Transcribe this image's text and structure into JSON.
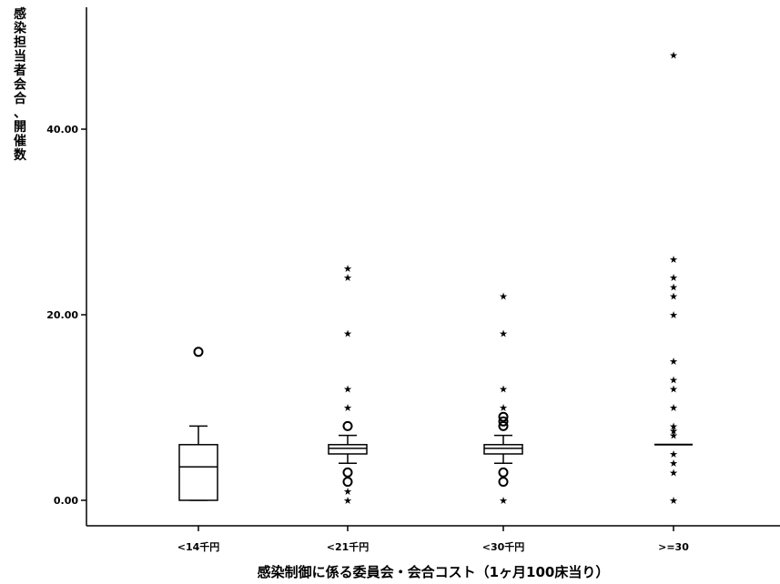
{
  "chart_data": {
    "type": "boxplot",
    "xlabel": "感染制御に係る委員会・会合コスト（1ヶ月100床当り）",
    "ylabel": "感染担当者会合・開催数",
    "ylim": [
      0,
      48
    ],
    "yticks": [
      0,
      20,
      40
    ],
    "ytick_labels": [
      "0.00",
      "20.00",
      "40.00"
    ],
    "categories": [
      "<14千円",
      "<21千円",
      "<30千円",
      ">=30"
    ],
    "groups": [
      {
        "category": "<14千円",
        "whisker_low": 0,
        "q1": 0,
        "median": 3.6,
        "q3": 6,
        "whisker_high": 8,
        "outliers": [
          16
        ],
        "extremes": []
      },
      {
        "category": "<21千円",
        "whisker_low": 4,
        "q1": 5,
        "median": 5.6,
        "q3": 6,
        "whisker_high": 7,
        "outliers": [
          8,
          3,
          2
        ],
        "extremes": [
          25,
          24,
          18,
          12,
          10,
          1,
          0
        ]
      },
      {
        "category": "<30千円",
        "whisker_low": 4,
        "q1": 5,
        "median": 5.6,
        "q3": 6,
        "whisker_high": 7,
        "outliers": [
          9,
          8.5,
          8,
          3,
          2
        ],
        "extremes": [
          22,
          18,
          12,
          10,
          0
        ]
      },
      {
        "category": ">=30",
        "whisker_low": 6,
        "q1": 6,
        "median": 6,
        "q3": 6,
        "whisker_high": 6,
        "outliers": [],
        "extremes": [
          48,
          26,
          24,
          23,
          22,
          20,
          15,
          13,
          12,
          10,
          8,
          7.5,
          7,
          5,
          4,
          3,
          0
        ]
      }
    ]
  }
}
